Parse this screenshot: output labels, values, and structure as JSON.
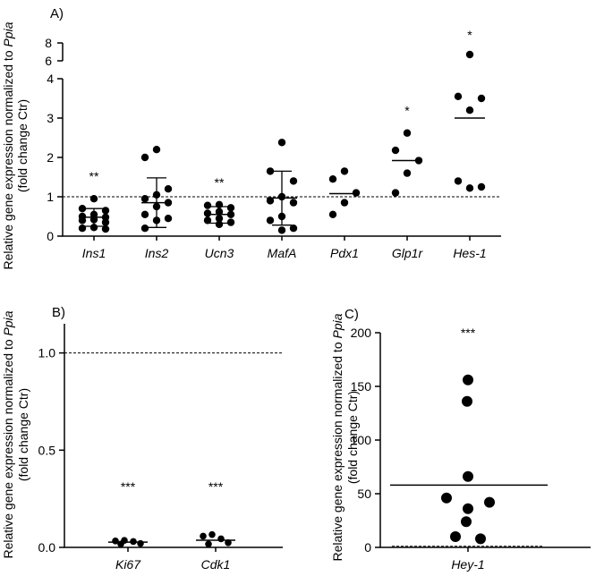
{
  "chart_data": [
    {
      "panel": "A)",
      "type": "scatter",
      "ylabel_prefix": "Relative gene expression normalized to ",
      "ylabel_gene": "Ppia",
      "ylabel_line2": "(fold change Ctr)",
      "ylim": [
        0,
        8
      ],
      "yticks": [
        0,
        1,
        2,
        3,
        4
      ],
      "yticks_break": [
        6,
        8
      ],
      "reference_line": 1,
      "categories": [
        "Ins1",
        "Ins2",
        "Ucn3",
        "MafA",
        "Pdx1",
        "Glp1r",
        "Hes-1"
      ],
      "significance": [
        "**",
        "",
        "**",
        "",
        "",
        "*",
        "*"
      ],
      "series": [
        {
          "name": "Ins1",
          "mean": 0.48,
          "err": [
            0.25,
            0.7
          ],
          "points": [
            0.95,
            0.7,
            0.65,
            0.55,
            0.5,
            0.48,
            0.42,
            0.4,
            0.35,
            0.22,
            0.2,
            0.18
          ]
        },
        {
          "name": "Ins2",
          "mean": 0.85,
          "err": [
            0.22,
            1.48
          ],
          "points": [
            2.2,
            2.0,
            1.2,
            1.05,
            0.95,
            0.85,
            0.75,
            0.55,
            0.45,
            0.4,
            0.2
          ]
        },
        {
          "name": "Ucn3",
          "mean": 0.55,
          "err": [
            0.33,
            0.75
          ],
          "points": [
            0.8,
            0.78,
            0.72,
            0.62,
            0.58,
            0.55,
            0.45,
            0.4,
            0.35,
            0.3
          ]
        },
        {
          "name": "MafA",
          "mean": 0.97,
          "err": [
            0.28,
            1.65
          ],
          "points": [
            2.38,
            1.65,
            1.4,
            1.0,
            0.9,
            0.85,
            0.5,
            0.4,
            0.2,
            0.15
          ]
        },
        {
          "name": "Pdx1",
          "mean": 1.08,
          "err": null,
          "points": [
            1.65,
            1.45,
            1.1,
            0.85,
            0.55
          ]
        },
        {
          "name": "Glp1r",
          "mean": 1.92,
          "err": null,
          "points": [
            2.62,
            2.18,
            1.92,
            1.6,
            1.1
          ]
        },
        {
          "name": "Hes-1",
          "mean": 3.0,
          "err": null,
          "points": [
            6.7,
            3.55,
            3.5,
            3.2,
            1.4,
            1.25,
            1.22
          ]
        }
      ]
    },
    {
      "panel": "B)",
      "type": "scatter",
      "ylabel_prefix": "Relative gene expression normalized to ",
      "ylabel_gene": "Ppia",
      "ylabel_line2": "(fold change Ctr)",
      "ylim": [
        0,
        1.15
      ],
      "yticks": [
        "0.0",
        "0.5",
        "1.0"
      ],
      "reference_line": 1,
      "categories": [
        "Ki67",
        "Cdk1"
      ],
      "significance": [
        "***",
        "***"
      ],
      "series": [
        {
          "name": "Ki67",
          "mean": 0.027,
          "points": [
            0.033,
            0.036,
            0.03,
            0.02,
            0.017
          ]
        },
        {
          "name": "Cdk1",
          "mean": 0.037,
          "points": [
            0.058,
            0.066,
            0.044,
            0.024,
            0.017
          ]
        }
      ]
    },
    {
      "panel": "C)",
      "type": "scatter",
      "ylabel_prefix": "Relative gene expression normalized to ",
      "ylabel_gene": "Ppia",
      "ylabel_line2": "(fold change Ctr)",
      "ylim": [
        0,
        200
      ],
      "yticks": [
        0,
        50,
        100,
        150,
        200
      ],
      "reference_line": 1,
      "categories": [
        "Hey-1"
      ],
      "significance": [
        "***"
      ],
      "series": [
        {
          "name": "Hey-1",
          "mean": 58,
          "points": [
            156,
            136,
            66,
            46,
            42,
            36,
            24,
            10,
            8
          ]
        }
      ]
    }
  ]
}
